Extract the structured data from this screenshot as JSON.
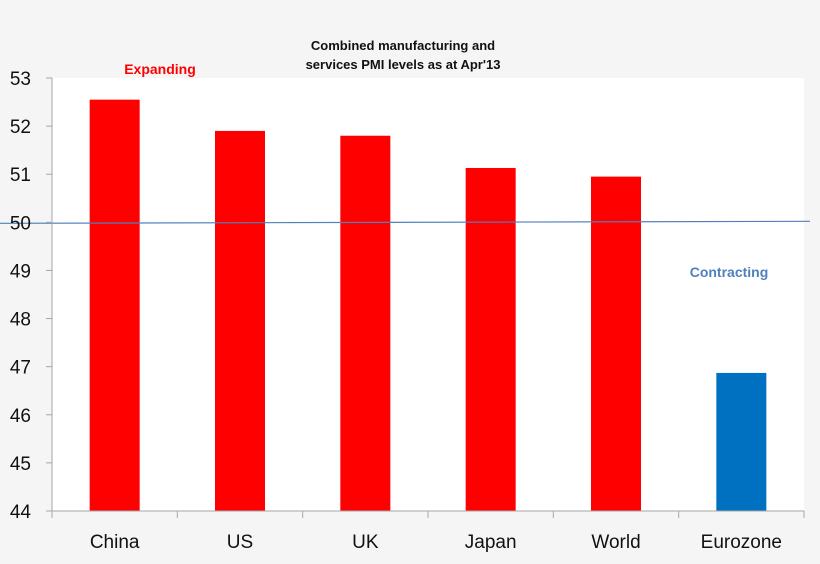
{
  "chart_data": {
    "type": "bar",
    "title_lines": [
      "Combined manufacturing and",
      "services PMI levels as at Apr'13"
    ],
    "categories": [
      "China",
      "US",
      "UK",
      "Japan",
      "World",
      "Eurozone"
    ],
    "values": [
      52.55,
      51.9,
      51.8,
      51.13,
      50.95,
      46.87
    ],
    "bar_colors": [
      "#ff0000",
      "#ff0000",
      "#ff0000",
      "#ff0000",
      "#ff0000",
      "#0070c0"
    ],
    "ylim": [
      44,
      53
    ],
    "yticks": [
      "44",
      "45",
      "46",
      "47",
      "48",
      "49",
      "50",
      "51",
      "52",
      "53"
    ],
    "reference_line": {
      "value": 50,
      "color": "#4f81bd"
    },
    "annotations": [
      {
        "text": "Expanding",
        "color": "#ff0000"
      },
      {
        "text": "Contracting",
        "color": "#4f81bd"
      }
    ],
    "xlabel": "",
    "ylabel": "",
    "grid": false,
    "legend": "none"
  }
}
